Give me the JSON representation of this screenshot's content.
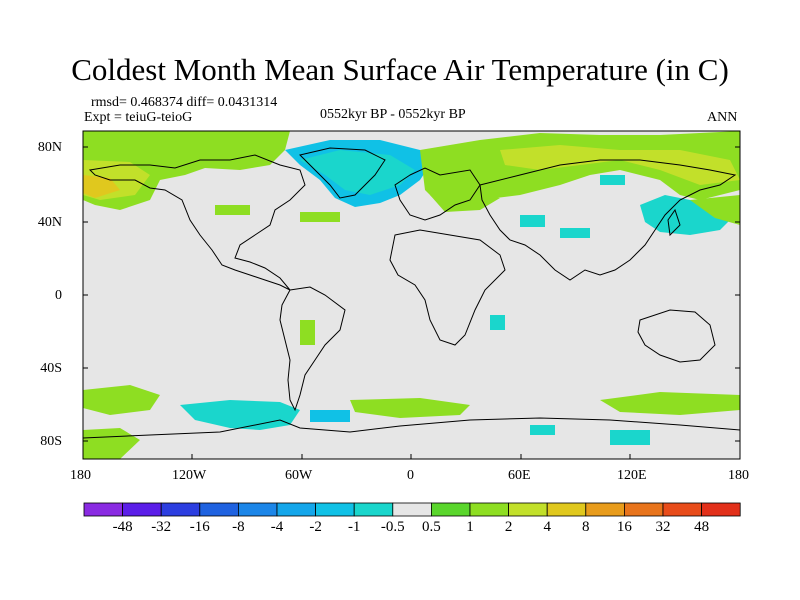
{
  "title": "Coldest Month Mean Surface Air Temperature (in C)",
  "stats": {
    "rmsd_line": "rmsd= 0.468374  diff= 0.0431314",
    "expt_line": "Expt = teiuG-teioG"
  },
  "period": "0552kyr BP - 0552kyr BP",
  "season": "ANN",
  "lat_ticks": [
    "80N",
    "40N",
    "0",
    "40S",
    "80S"
  ],
  "lon_ticks": [
    "180",
    "120W",
    "60W",
    "0",
    "60E",
    "120E",
    "180"
  ],
  "colorbar": {
    "labels": [
      "-48",
      "-32",
      "-16",
      "-8",
      "-4",
      "-2",
      "-1",
      "-0.5",
      "0.5",
      "1",
      "2",
      "4",
      "8",
      "16",
      "32",
      "48"
    ],
    "colors": [
      "#8a2be2",
      "#5b1ee8",
      "#2c3ee0",
      "#1f62e0",
      "#1c86e8",
      "#14a6ea",
      "#10c1e6",
      "#1ad6cc",
      "#e6e6e6",
      "#5ad62c",
      "#8ede22",
      "#c2e02a",
      "#e0c81e",
      "#e89c1c",
      "#e8741c",
      "#e84c1a",
      "#e2301a"
    ]
  },
  "map_colors": {
    "neutral": "#e6e6e6",
    "green": "#8ede22",
    "lime": "#5ad62c",
    "yellowgreen": "#c2e02a",
    "yellow": "#e0c81e",
    "cyan": "#10c1e6",
    "lightblue": "#1ad6cc"
  }
}
